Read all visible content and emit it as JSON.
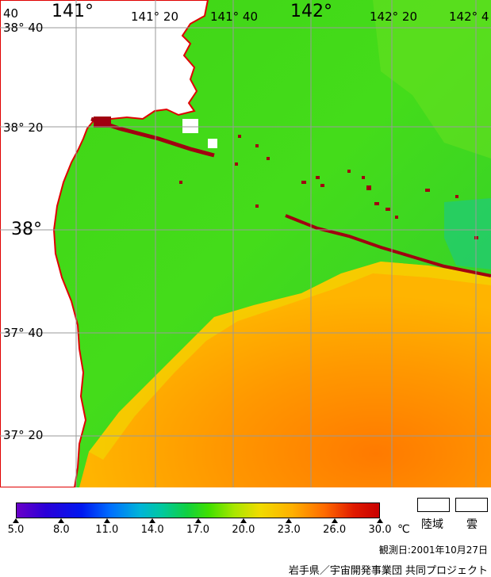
{
  "map": {
    "longitude_labels": {
      "lon_141": "141°",
      "lon_141_20": "141° 20",
      "lon_141_40": "141° 40",
      "lon_142": "142°",
      "lon_142_20": "142° 20",
      "lon_142_40": "142° 4"
    },
    "latitude_labels": {
      "lat_38_40": "38° 40",
      "lat_38_20": "38° 20",
      "lat_38": "38°",
      "lat_37_40": "37° 40",
      "lat_37_20": "37° 20"
    },
    "corner_label": "40",
    "colors": {
      "land": "#ffffff",
      "coast": "#e00000",
      "graticule": "#9a9a9a",
      "sea_cool": "#3ccd17",
      "sea_mid": "#4ae018",
      "sea_warm": "#ffa800",
      "sea_hot": "#ff8400",
      "front": "#a00010"
    }
  },
  "colorbar": {
    "ticks": [
      "5.0",
      "8.0",
      "11.0",
      "14.0",
      "17.0",
      "20.0",
      "23.0",
      "26.0",
      "30.0"
    ],
    "unit": "℃"
  },
  "legend": {
    "land_label": "陸域",
    "cloud_label": "雲"
  },
  "observation_date": "観測日:2001年10月27日",
  "credit": "岩手県／宇宙開発事業団 共同プロジェクト"
}
